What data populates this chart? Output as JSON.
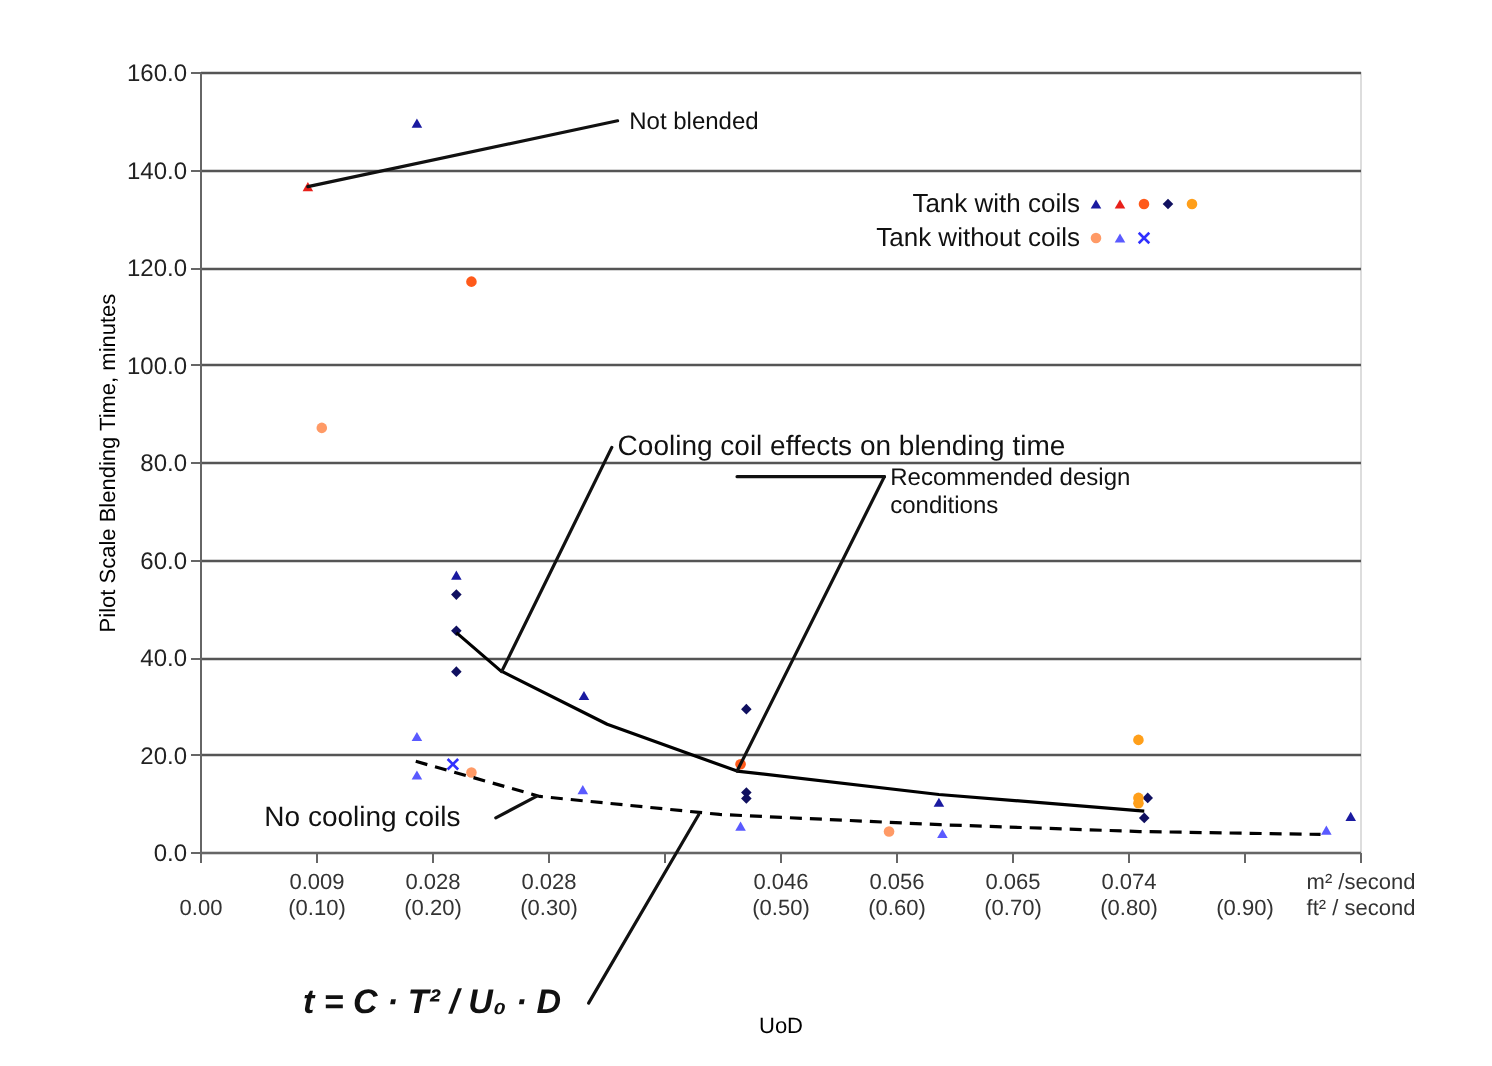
{
  "chart_data": {
    "type": "scatter",
    "xlabel": "UoD",
    "ylabel": "Pilot Scale Blending Time, minutes",
    "xlim": [
      0,
      1.0
    ],
    "ylim": [
      0,
      160
    ],
    "xticks": [
      {
        "value": 0,
        "label": "\n0.00"
      },
      {
        "value": 0.1,
        "label": "0.009\n(0.10)"
      },
      {
        "value": 0.2,
        "label": "0.028\n(0.20)"
      },
      {
        "value": 0.3,
        "label": "0.028\n(0.30)"
      },
      {
        "value": 0.4,
        "label": null
      },
      {
        "value": 0.5,
        "label": "0.046\n(0.50)"
      },
      {
        "value": 0.6,
        "label": "0.056\n(0.60)"
      },
      {
        "value": 0.7,
        "label": "0.065\n(0.70)"
      },
      {
        "value": 0.8,
        "label": "0.074\n(0.80)"
      },
      {
        "value": 0.9,
        "label": "\n(0.90)"
      },
      {
        "value": 1.0,
        "label": "m² /second\nft² / second"
      }
    ],
    "yticks": [
      {
        "value": 0,
        "label": "0.0"
      },
      {
        "value": 20,
        "label": "20.0"
      },
      {
        "value": 40,
        "label": "40.0"
      },
      {
        "value": 60,
        "label": "60.0"
      },
      {
        "value": 80,
        "label": "80.0"
      },
      {
        "value": 100,
        "label": "100.0"
      },
      {
        "value": 120,
        "label": "120.0"
      },
      {
        "value": 140,
        "label": "140.0"
      },
      {
        "value": 160,
        "label": "160.0"
      }
    ],
    "grid": "y",
    "legend": "top right",
    "series": [
      {
        "name": "Tank with coils",
        "color": "#1a1aa0",
        "marker": "triangle",
        "x": [
          0.187,
          0.221,
          0.331,
          0.637,
          0.992
        ],
        "values": [
          149.5,
          56.8,
          32.1,
          10.2,
          7.3
        ]
      },
      {
        "color": "#e8201a",
        "marker": "triangle",
        "x": [
          0.093
        ],
        "values": [
          136.5
        ]
      },
      {
        "color": "#ff5a1a",
        "marker": "circle",
        "x": [
          0.234,
          0.466
        ],
        "values": [
          117,
          18
        ]
      },
      {
        "color": "#101060",
        "marker": "diamond",
        "x": [
          0.221,
          0.221,
          0.221,
          0.471,
          0.471,
          0.471,
          0.817,
          0.814
        ],
        "values": [
          52.8,
          45.4,
          37.0,
          29.3,
          12.2,
          11.0,
          11.1,
          7.0
        ]
      },
      {
        "color": "#ff9f1a",
        "marker": "circle",
        "x": [
          0.809,
          0.809,
          0.809
        ],
        "values": [
          23.0,
          11.1,
          10.0
        ]
      },
      {
        "name": "Tank without coils",
        "color": "#ff9a66",
        "marker": "circle",
        "x": [
          0.105,
          0.234,
          0.594
        ],
        "values": [
          87,
          16.3,
          4.2
        ]
      },
      {
        "color": "#5a5aff",
        "marker": "triangle",
        "x": [
          0.187,
          0.187,
          0.33,
          0.466,
          0.64,
          0.971
        ],
        "values": [
          23.7,
          15.8,
          12.8,
          5.3,
          3.8,
          4.5
        ]
      },
      {
        "color": "#3030ff",
        "marker": "cross",
        "x": [
          0.218
        ],
        "values": [
          18.0
        ]
      },
      {
        "type": "line",
        "color": "#000000",
        "line_style": "solid",
        "x": [
          0.221,
          0.259,
          0.351,
          0.463,
          0.637,
          0.814
        ],
        "values": [
          45,
          37.2,
          26.2,
          16.6,
          11.8,
          8.4
        ]
      },
      {
        "type": "line",
        "color": "#000000",
        "line_style": "dashed",
        "x": [
          0.186,
          0.293,
          0.448,
          0.638,
          0.81,
          0.966
        ],
        "values": [
          18.6,
          11.4,
          7.7,
          5.6,
          4.2,
          3.6
        ]
      }
    ],
    "annotations": [
      {
        "text": "Not blended",
        "x": 0.093,
        "y": 136.5
      },
      {
        "text": "Cooling coil effects on blending time",
        "x": 0.26,
        "y": 37
      },
      {
        "text": "Recommended design\nconditions",
        "x": 0.463,
        "y": 16.6
      },
      {
        "text": "No cooling coils",
        "x": 0.29,
        "y": 11.4
      },
      {
        "text": "t = C · T² / U₀ · D",
        "x": 0.43,
        "y": 7.7
      }
    ]
  }
}
